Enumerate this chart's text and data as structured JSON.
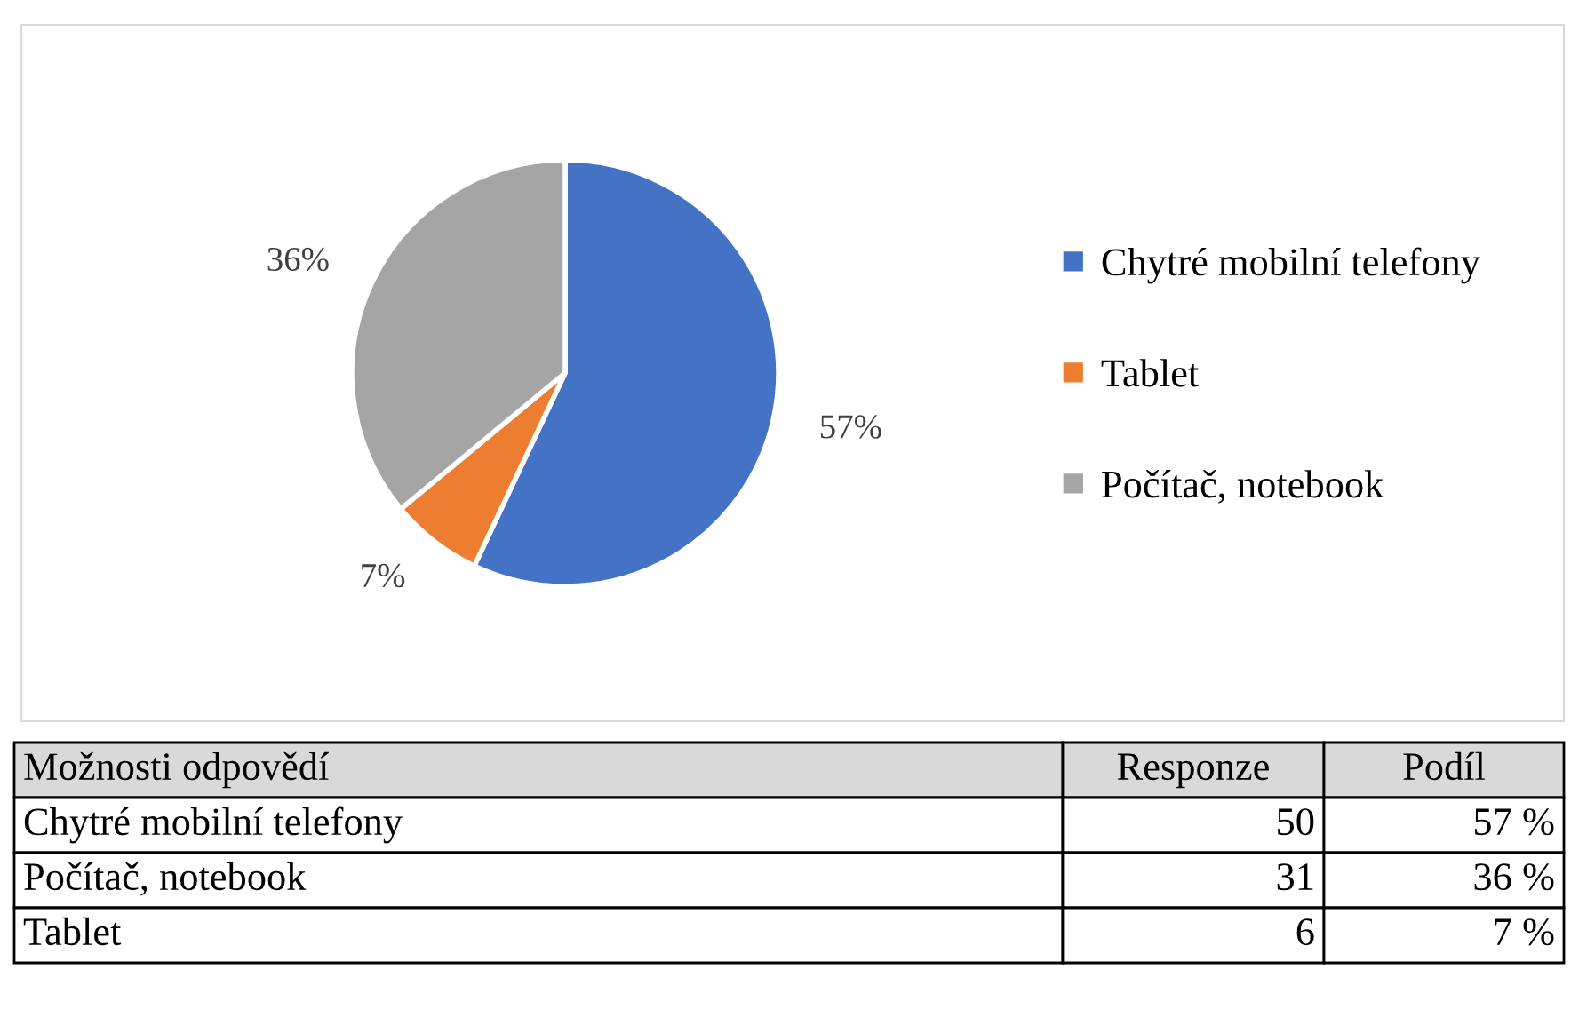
{
  "chart_data": [
    {
      "type": "pie",
      "categories": [
        "Chytré mobilní telefony",
        "Tablet",
        "Počítač, notebook"
      ],
      "values": [
        57,
        7,
        36
      ],
      "colors": [
        "#4472c4",
        "#ed7d31",
        "#a5a5a5"
      ],
      "value_labels": [
        "57%",
        "7%",
        "36%"
      ],
      "legend": "right"
    },
    {
      "type": "other",
      "title": "Možnosti odpovědí",
      "data_labels": true,
      "categories": [
        "Chytré mobilní telefony",
        "Počítač, notebook",
        "Tablet"
      ],
      "series": [
        {
          "name": "Responze",
          "values": [
            50,
            31,
            6
          ]
        },
        {
          "name": "Podíl",
          "values": [
            57,
            36,
            7
          ],
          "value_labels": [
            "57 %",
            "36 %",
            "7 %"
          ]
        }
      ]
    }
  ]
}
